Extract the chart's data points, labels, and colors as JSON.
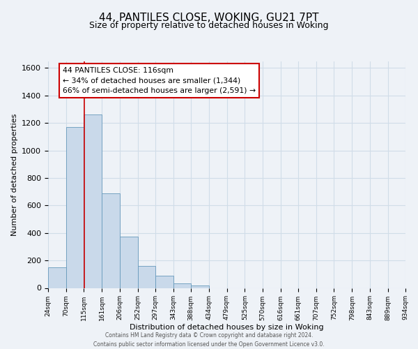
{
  "title": "44, PANTILES CLOSE, WOKING, GU21 7PT",
  "subtitle": "Size of property relative to detached houses in Woking",
  "xlabel": "Distribution of detached houses by size in Woking",
  "ylabel": "Number of detached properties",
  "footer_line1": "Contains HM Land Registry data © Crown copyright and database right 2024.",
  "footer_line2": "Contains public sector information licensed under the Open Government Licence v3.0.",
  "annotation_title": "44 PANTILES CLOSE: 116sqm",
  "annotation_line1": "← 34% of detached houses are smaller (1,344)",
  "annotation_line2": "66% of semi-detached houses are larger (2,591) →",
  "bar_left_edges": [
    24,
    70,
    115,
    161,
    206,
    252,
    297,
    343,
    388,
    434,
    479,
    525,
    570,
    616,
    661,
    707,
    752,
    798,
    843,
    889
  ],
  "bar_widths": [
    46,
    45,
    46,
    45,
    46,
    45,
    46,
    45,
    46,
    45,
    46,
    45,
    46,
    45,
    46,
    45,
    46,
    45,
    46,
    45
  ],
  "bar_heights": [
    150,
    1170,
    1260,
    690,
    375,
    160,
    90,
    35,
    20,
    0,
    0,
    0,
    0,
    0,
    0,
    0,
    0,
    0,
    0,
    0
  ],
  "tick_labels": [
    "24sqm",
    "70sqm",
    "115sqm",
    "161sqm",
    "206sqm",
    "252sqm",
    "297sqm",
    "343sqm",
    "388sqm",
    "434sqm",
    "479sqm",
    "525sqm",
    "570sqm",
    "616sqm",
    "661sqm",
    "707sqm",
    "752sqm",
    "798sqm",
    "843sqm",
    "889sqm",
    "934sqm"
  ],
  "ylim": [
    0,
    1650
  ],
  "yticks": [
    0,
    200,
    400,
    600,
    800,
    1000,
    1200,
    1400,
    1600
  ],
  "bar_color": "#c9d9ea",
  "bar_edge_color": "#6699bb",
  "vline_color": "#cc0000",
  "vline_x": 116,
  "grid_color": "#d0dde8",
  "background_color": "#eef2f7",
  "annotation_box_color": "#ffffff",
  "annotation_box_edge": "#cc0000",
  "title_fontsize": 11,
  "subtitle_fontsize": 9,
  "xlabel_fontsize": 8,
  "ylabel_fontsize": 8,
  "tick_fontsize": 6.5,
  "ytick_fontsize": 8,
  "annotation_fontsize": 7.8,
  "footer_fontsize": 5.5
}
